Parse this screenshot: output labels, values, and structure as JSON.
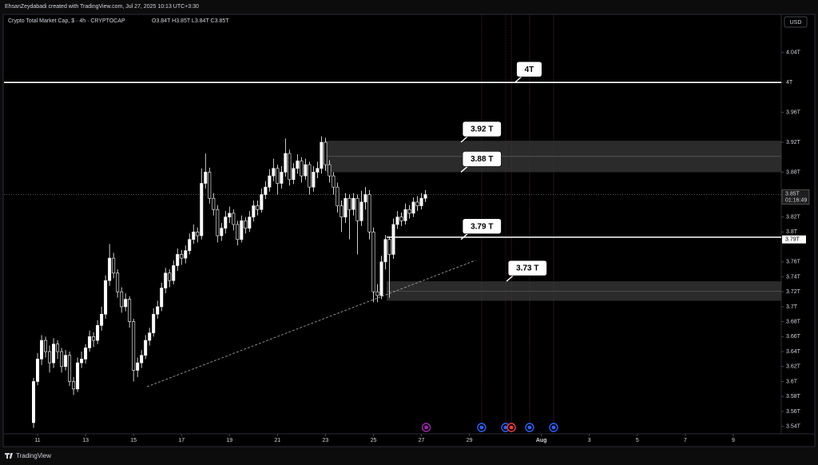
{
  "chart_data": {
    "type": "candlestick",
    "credit": "EhsanZeydabadi created with TradingView.com, Jul 27, 2025 10:13 UTC+3:30",
    "title": "Crypto Total Market Cap, $ · 4h · CRYPTOCAP",
    "ohlc_text": "O3.84T H3.85T L3.84T C3.85T",
    "currency": "USD",
    "brand": "TradingView",
    "x": [
      10.833,
      11,
      11.167,
      11.333,
      11.5,
      11.667,
      11.833,
      12,
      12.167,
      12.333,
      12.5,
      12.667,
      12.833,
      13,
      13.167,
      13.333,
      13.5,
      13.667,
      13.833,
      14,
      14.167,
      14.333,
      14.5,
      14.667,
      14.833,
      15,
      15.167,
      15.333,
      15.5,
      15.667,
      15.833,
      16,
      16.167,
      16.333,
      16.5,
      16.667,
      16.833,
      17,
      17.167,
      17.333,
      17.5,
      17.667,
      17.833,
      18,
      18.167,
      18.333,
      18.5,
      18.667,
      18.833,
      19,
      19.167,
      19.333,
      19.5,
      19.667,
      19.833,
      20,
      20.167,
      20.333,
      20.5,
      20.667,
      20.833,
      21,
      21.167,
      21.333,
      21.5,
      21.667,
      21.833,
      22,
      22.167,
      22.333,
      22.5,
      22.667,
      22.833,
      23,
      23.167,
      23.333,
      23.5,
      23.667,
      23.833,
      24,
      24.167,
      24.333,
      24.5,
      24.667,
      24.833,
      25,
      25.167,
      25.333,
      25.5,
      25.667,
      25.833,
      26,
      26.167,
      26.333,
      26.5,
      26.667,
      26.833,
      27,
      27.167
    ],
    "open": [
      3.545,
      3.6,
      3.63,
      3.655,
      3.64,
      3.625,
      3.65,
      3.64,
      3.62,
      3.635,
      3.6,
      3.59,
      3.625,
      3.63,
      3.645,
      3.66,
      3.655,
      3.675,
      3.69,
      3.735,
      3.765,
      3.745,
      3.72,
      3.7,
      3.71,
      3.68,
      3.615,
      3.625,
      3.635,
      3.655,
      3.665,
      3.69,
      3.7,
      3.725,
      3.745,
      3.735,
      3.755,
      3.77,
      3.765,
      3.775,
      3.79,
      3.8,
      3.795,
      3.865,
      3.88,
      3.845,
      3.83,
      3.795,
      3.805,
      3.82,
      3.825,
      3.81,
      3.79,
      3.815,
      3.805,
      3.82,
      3.835,
      3.83,
      3.85,
      3.86,
      3.875,
      3.885,
      3.865,
      3.88,
      3.905,
      3.87,
      3.885,
      3.895,
      3.875,
      3.89,
      3.86,
      3.88,
      3.885,
      3.92,
      3.89,
      3.875,
      3.86,
      3.835,
      3.82,
      3.845,
      3.83,
      3.845,
      3.815,
      3.84,
      3.85,
      3.8,
      3.72,
      3.715,
      3.76,
      3.79,
      3.77,
      3.81,
      3.82,
      3.815,
      3.83,
      3.825,
      3.84,
      3.835,
      3.845
    ],
    "high": [
      3.605,
      3.638,
      3.662,
      3.66,
      3.648,
      3.658,
      3.655,
      3.645,
      3.642,
      3.64,
      3.606,
      3.632,
      3.64,
      3.65,
      3.668,
      3.666,
      3.682,
      3.7,
      3.742,
      3.784,
      3.772,
      3.75,
      3.726,
      3.718,
      3.714,
      3.684,
      3.632,
      3.642,
      3.662,
      3.672,
      3.698,
      3.708,
      3.732,
      3.752,
      3.75,
      3.762,
      3.778,
      3.776,
      3.782,
      3.798,
      3.81,
      3.806,
      3.885,
      3.905,
      3.886,
      3.852,
      3.836,
      3.812,
      3.828,
      3.834,
      3.83,
      3.815,
      3.822,
      3.82,
      3.828,
      3.842,
      3.842,
      3.858,
      3.868,
      3.884,
      3.898,
      3.89,
      3.888,
      3.925,
      3.91,
      3.892,
      3.904,
      3.9,
      3.898,
      3.894,
      3.888,
      3.894,
      3.928,
      3.926,
      3.896,
      3.88,
      3.866,
      3.842,
      3.852,
      3.85,
      3.852,
      3.85,
      3.855,
      3.86,
      3.856,
      3.806,
      3.73,
      3.768,
      3.796,
      3.794,
      3.818,
      3.828,
      3.826,
      3.838,
      3.836,
      3.846,
      3.848,
      3.852,
      3.856
    ],
    "low": [
      3.538,
      3.595,
      3.622,
      3.632,
      3.612,
      3.618,
      3.63,
      3.612,
      3.615,
      3.594,
      3.582,
      3.586,
      3.618,
      3.624,
      3.64,
      3.646,
      3.65,
      3.668,
      3.684,
      3.728,
      3.738,
      3.712,
      3.692,
      3.694,
      3.672,
      3.6,
      3.606,
      3.618,
      3.63,
      3.648,
      3.66,
      3.684,
      3.694,
      3.718,
      3.726,
      3.73,
      3.748,
      3.756,
      3.758,
      3.77,
      3.784,
      3.786,
      3.79,
      3.858,
      3.838,
      3.822,
      3.786,
      3.788,
      3.798,
      3.812,
      3.802,
      3.782,
      3.786,
      3.798,
      3.8,
      3.814,
      3.822,
      3.826,
      3.844,
      3.854,
      3.868,
      3.85,
      3.858,
      3.874,
      3.862,
      3.864,
      3.878,
      3.866,
      3.87,
      3.85,
      3.854,
      3.872,
      3.878,
      3.882,
      3.866,
      3.85,
      3.826,
      3.8,
      3.812,
      3.79,
      3.822,
      3.77,
      3.808,
      3.83,
      3.79,
      3.706,
      3.706,
      3.71,
      3.75,
      3.712,
      3.764,
      3.804,
      3.808,
      3.81,
      3.818,
      3.82,
      3.828,
      3.83,
      3.84
    ],
    "close": [
      3.6,
      3.63,
      3.655,
      3.64,
      3.625,
      3.65,
      3.64,
      3.62,
      3.635,
      3.6,
      3.59,
      3.625,
      3.63,
      3.645,
      3.66,
      3.655,
      3.675,
      3.69,
      3.735,
      3.765,
      3.745,
      3.72,
      3.7,
      3.71,
      3.68,
      3.615,
      3.625,
      3.635,
      3.655,
      3.665,
      3.69,
      3.7,
      3.725,
      3.745,
      3.735,
      3.755,
      3.77,
      3.765,
      3.775,
      3.79,
      3.8,
      3.795,
      3.865,
      3.88,
      3.845,
      3.83,
      3.795,
      3.805,
      3.82,
      3.825,
      3.81,
      3.79,
      3.815,
      3.805,
      3.82,
      3.835,
      3.83,
      3.85,
      3.86,
      3.875,
      3.885,
      3.865,
      3.88,
      3.905,
      3.87,
      3.885,
      3.895,
      3.875,
      3.89,
      3.86,
      3.88,
      3.885,
      3.92,
      3.89,
      3.875,
      3.86,
      3.835,
      3.82,
      3.845,
      3.83,
      3.845,
      3.815,
      3.84,
      3.85,
      3.8,
      3.72,
      3.715,
      3.76,
      3.79,
      3.77,
      3.81,
      3.82,
      3.815,
      3.83,
      3.825,
      3.84,
      3.835,
      3.845,
      3.85
    ],
    "up_color": "#ffffff",
    "down_color": "#000000",
    "xlim": [
      9.6,
      42.0
    ],
    "ylim": [
      3.53,
      4.091
    ],
    "xticks": [
      11,
      13,
      15,
      17,
      19,
      21,
      23,
      25,
      27,
      29,
      {
        "value": 32,
        "label": "Aug"
      },
      {
        "value": 34,
        "label": "3"
      },
      {
        "value": 36,
        "label": "5"
      },
      {
        "value": 38,
        "label": "7"
      },
      {
        "value": 40,
        "label": "9"
      }
    ],
    "yticks": [
      {
        "value": 4.04,
        "label": "4.04T"
      },
      {
        "value": 4.0,
        "label": "4T"
      },
      {
        "value": 3.96,
        "label": "3.96T"
      },
      {
        "value": 3.92,
        "label": "3.92T"
      },
      {
        "value": 3.88,
        "label": "3.88T"
      },
      {
        "value": 3.82,
        "label": "3.82T"
      },
      {
        "value": 3.8,
        "label": "3.8T"
      },
      {
        "value": 3.76,
        "label": "3.76T"
      },
      {
        "value": 3.74,
        "label": "3.74T"
      },
      {
        "value": 3.72,
        "label": "3.72T"
      },
      {
        "value": 3.7,
        "label": "3.7T"
      },
      {
        "value": 3.68,
        "label": "3.68T"
      },
      {
        "value": 3.66,
        "label": "3.66T"
      },
      {
        "value": 3.64,
        "label": "3.64T"
      },
      {
        "value": 3.62,
        "label": "3.62T"
      },
      {
        "value": 3.6,
        "label": "3.6T"
      },
      {
        "value": 3.58,
        "label": "3.58T"
      },
      {
        "value": 3.56,
        "label": "3.56T"
      },
      {
        "value": 3.54,
        "label": "3.54T"
      }
    ],
    "grid": false,
    "last_price": {
      "value": 3.85,
      "label": "3.85T",
      "countdown": "01:16:49"
    },
    "axis_marker": {
      "value": 3.79,
      "label": "3.79T"
    },
    "levels": [
      {
        "value": 4.0,
        "x": 9.6
      },
      {
        "value": 3.793,
        "x": 25.55
      }
    ],
    "zones": [
      {
        "from": 3.88,
        "to": 3.922,
        "x": 23.0
      },
      {
        "from": 3.708,
        "to": 3.734,
        "x": 25.55
      }
    ],
    "trendline": {
      "x": [
        15.56,
        29.25
      ],
      "y": [
        3.593,
        3.762
      ]
    },
    "callouts": [
      {
        "label": "4T",
        "x": 30.9,
        "y": 4.0
      },
      {
        "label": "3.92 T",
        "x": 28.65,
        "y": 3.92
      },
      {
        "label": "3.88 T",
        "x": 28.65,
        "y": 3.88
      },
      {
        "label": "3.79 T",
        "x": 28.65,
        "y": 3.79
      },
      {
        "label": "3.73 T",
        "x": 30.55,
        "y": 3.734
      }
    ],
    "event_lines": [
      29.51,
      30.51,
      30.75,
      31.51,
      32.51
    ],
    "event_icons": [
      {
        "x": 27.2,
        "color": "#9c27b0"
      },
      {
        "x": 29.51,
        "color": "#2962ff"
      },
      {
        "x": 30.51,
        "color": "#2962ff"
      },
      {
        "x": 30.75,
        "color": "#f23645"
      },
      {
        "x": 31.51,
        "color": "#2962ff"
      },
      {
        "x": 32.51,
        "color": "#2962ff"
      }
    ]
  }
}
